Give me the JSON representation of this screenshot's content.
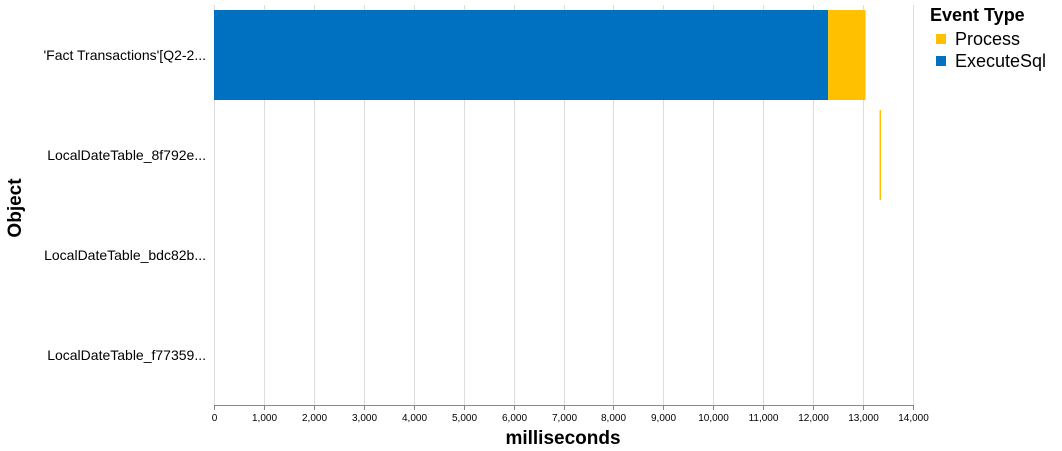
{
  "chart_data": {
    "type": "bar",
    "orientation": "horizontal",
    "stacked": true,
    "categories": [
      "'Fact Transactions'[Q2-2...",
      "LocalDateTable_8f792e...",
      "LocalDateTable_bdc82b...",
      "LocalDateTable_f77359..."
    ],
    "x": [
      {
        "start": 0,
        "end": 13050
      },
      {
        "start": 13330,
        "end": 13360
      },
      {
        "start": 0,
        "end": 0
      },
      {
        "start": 0,
        "end": 0
      }
    ],
    "series": [
      {
        "name": "ExecuteSql",
        "color": "#0070C0",
        "values": [
          12300,
          0,
          0,
          0
        ]
      },
      {
        "name": "Process",
        "color": "#FFC000",
        "values": [
          750,
          30,
          0,
          0
        ]
      }
    ],
    "xlabel": "milliseconds",
    "ylabel": "Object",
    "xlim": [
      0,
      14000
    ],
    "xticks": [
      0,
      1000,
      2000,
      3000,
      4000,
      5000,
      6000,
      7000,
      8000,
      9000,
      10000,
      11000,
      12000,
      13000,
      14000
    ],
    "xtick_labels": [
      "0",
      "1,000",
      "2,000",
      "3,000",
      "4,000",
      "5,000",
      "6,000",
      "7,000",
      "8,000",
      "9,000",
      "10,000",
      "11,000",
      "12,000",
      "13,000",
      "14,000"
    ],
    "grid": true,
    "legend": {
      "title": "Event Type",
      "placement": "top-right",
      "entries": [
        {
          "label": "Process",
          "color": "#FFC000"
        },
        {
          "label": "ExecuteSql",
          "color": "#0070C0"
        }
      ]
    }
  }
}
